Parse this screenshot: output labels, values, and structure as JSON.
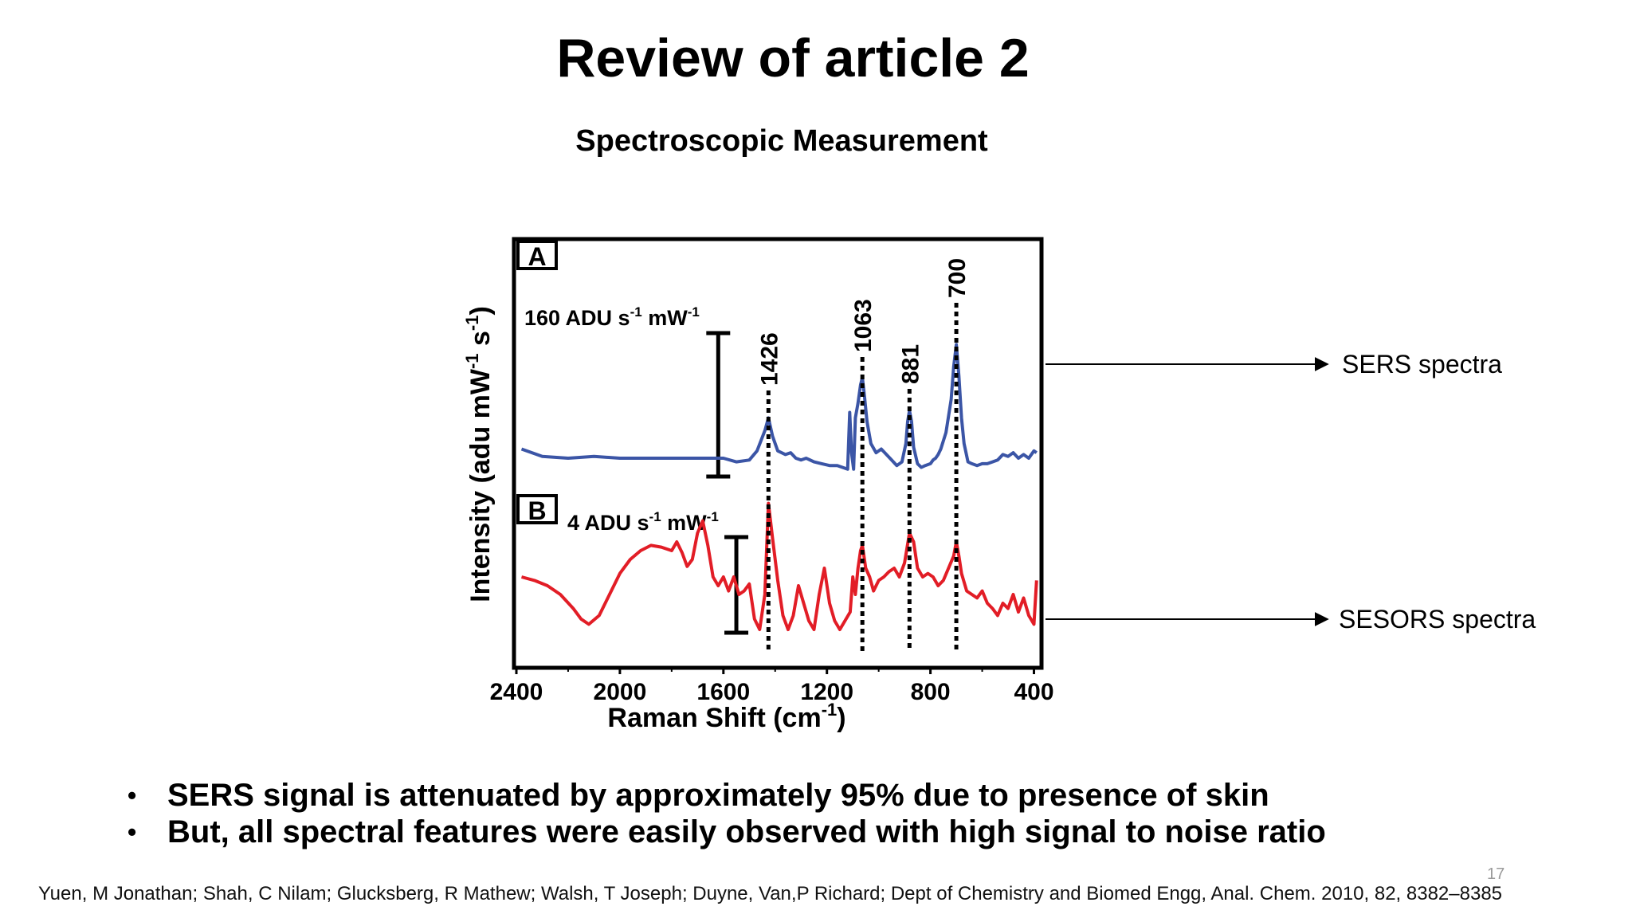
{
  "slide": {
    "title": "Review of article 2",
    "subtitle": "Spectroscopic Measurement",
    "bullets": [
      "SERS signal is attenuated by approximately 95% due to presence of skin",
      "But, all spectral features were easily observed with high signal to noise ratio"
    ],
    "page_number": "17",
    "citation": "Yuen, M Jonathan; Shah, C Nilam; Glucksberg, R Mathew; Walsh, T Joseph; Duyne, Van,P Richard; Dept of Chemistry and Biomed Engg, Anal. Chem. 2010, 82, 8382–8385",
    "bullet_symbol": "•"
  },
  "chart_data": {
    "type": "line",
    "xlabel": "Raman Shift (cm-1)",
    "ylabel": "Intensity (adu mW-1 s-1)",
    "xlim": [
      2400,
      380
    ],
    "x_direction": "decreasing",
    "x_ticks": [
      "2400",
      "2000",
      "1600",
      "1200",
      "800",
      "400"
    ],
    "panels": [
      {
        "label": "A",
        "scale_bar_label": "160 ADU s-1 mW-1",
        "scale_bar_x": 1620,
        "color": "#3b55a6",
        "x": [
          2380,
          2300,
          2200,
          2100,
          2000,
          1900,
          1800,
          1700,
          1600,
          1550,
          1500,
          1470,
          1440,
          1426,
          1410,
          1390,
          1360,
          1340,
          1320,
          1300,
          1280,
          1250,
          1220,
          1190,
          1160,
          1140,
          1120,
          1112,
          1105,
          1097,
          1090,
          1080,
          1070,
          1063,
          1055,
          1045,
          1030,
          1010,
          990,
          970,
          950,
          930,
          910,
          895,
          888,
          881,
          873,
          865,
          850,
          835,
          820,
          800,
          790,
          780,
          770,
          760,
          740,
          720,
          710,
          700,
          690,
          680,
          670,
          655,
          640,
          620,
          600,
          580,
          560,
          540,
          520,
          500,
          480,
          460,
          440,
          420,
          400,
          390
        ],
        "y": [
          0.05,
          0.01,
          0.0,
          0.01,
          0.0,
          0.0,
          0.0,
          0.0,
          0.0,
          -0.02,
          -0.01,
          0.04,
          0.15,
          0.22,
          0.12,
          0.04,
          0.02,
          0.03,
          0.0,
          -0.01,
          0.0,
          -0.02,
          -0.03,
          -0.04,
          -0.04,
          -0.05,
          -0.06,
          0.25,
          0.03,
          -0.06,
          0.22,
          0.3,
          0.4,
          0.44,
          0.34,
          0.2,
          0.08,
          0.03,
          0.05,
          0.02,
          -0.01,
          -0.04,
          -0.02,
          0.08,
          0.2,
          0.26,
          0.2,
          0.06,
          -0.03,
          -0.05,
          -0.04,
          -0.03,
          -0.01,
          0.0,
          0.02,
          0.05,
          0.14,
          0.32,
          0.5,
          0.62,
          0.45,
          0.22,
          0.08,
          -0.02,
          -0.03,
          -0.04,
          -0.03,
          -0.03,
          -0.02,
          -0.01,
          0.02,
          0.01,
          0.03,
          0.0,
          0.02,
          0.0,
          0.04,
          0.03
        ]
      },
      {
        "label": "B",
        "scale_bar_label": "4 ADU s-1 mW-1",
        "scale_bar_x": 1550,
        "color": "#e21d26",
        "x": [
          2380,
          2330,
          2280,
          2230,
          2180,
          2150,
          2120,
          2080,
          2040,
          2000,
          1960,
          1920,
          1880,
          1840,
          1800,
          1780,
          1760,
          1740,
          1720,
          1700,
          1680,
          1660,
          1640,
          1620,
          1600,
          1580,
          1560,
          1540,
          1520,
          1500,
          1480,
          1460,
          1440,
          1426,
          1410,
          1390,
          1370,
          1350,
          1330,
          1310,
          1290,
          1270,
          1250,
          1230,
          1210,
          1190,
          1170,
          1150,
          1130,
          1110,
          1100,
          1090,
          1080,
          1070,
          1063,
          1050,
          1035,
          1020,
          1000,
          980,
          960,
          940,
          920,
          900,
          881,
          865,
          850,
          830,
          810,
          790,
          770,
          750,
          730,
          710,
          700,
          690,
          680,
          660,
          640,
          620,
          600,
          580,
          560,
          540,
          520,
          500,
          480,
          460,
          440,
          420,
          400,
          390
        ],
        "y": [
          0.3,
          0.28,
          0.25,
          0.2,
          0.12,
          0.06,
          0.03,
          0.08,
          0.2,
          0.32,
          0.4,
          0.45,
          0.48,
          0.47,
          0.45,
          0.5,
          0.44,
          0.36,
          0.4,
          0.55,
          0.62,
          0.48,
          0.3,
          0.25,
          0.3,
          0.22,
          0.3,
          0.2,
          0.22,
          0.26,
          0.06,
          0.0,
          0.2,
          0.72,
          0.52,
          0.28,
          0.08,
          0.0,
          0.08,
          0.25,
          0.15,
          0.05,
          0.0,
          0.2,
          0.35,
          0.15,
          0.05,
          0.0,
          0.05,
          0.1,
          0.3,
          0.2,
          0.35,
          0.45,
          0.48,
          0.35,
          0.3,
          0.22,
          0.28,
          0.3,
          0.33,
          0.35,
          0.3,
          0.38,
          0.55,
          0.5,
          0.35,
          0.3,
          0.32,
          0.3,
          0.25,
          0.28,
          0.35,
          0.42,
          0.5,
          0.42,
          0.32,
          0.22,
          0.2,
          0.18,
          0.22,
          0.15,
          0.12,
          0.08,
          0.15,
          0.12,
          0.2,
          0.1,
          0.18,
          0.08,
          0.03,
          0.28
        ]
      }
    ],
    "peak_markers": [
      {
        "x": 1426,
        "label": "1426"
      },
      {
        "x": 1063,
        "label": "1063"
      },
      {
        "x": 881,
        "label": "881"
      },
      {
        "x": 700,
        "label": "700"
      }
    ],
    "annotations": [
      {
        "text": "SERS spectra",
        "points_to": "A"
      },
      {
        "text": "SESORS spectra",
        "points_to": "B"
      }
    ],
    "grid": false,
    "legend": "none"
  }
}
